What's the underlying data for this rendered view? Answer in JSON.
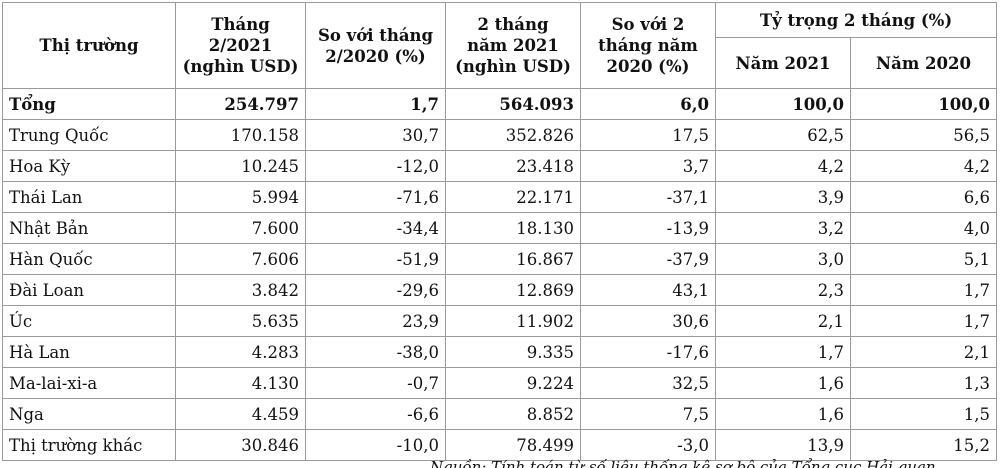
{
  "table": {
    "header": {
      "market": "Thị trường",
      "month_value": "Tháng\n2/2021\n(nghìn USD)",
      "month_change": "So với tháng\n2/2020 (%)",
      "two_month_value": "2 tháng\nnăm 2021\n(nghìn USD)",
      "two_month_change": "So với 2\ntháng năm\n2020 (%)",
      "share_group": "Tỷ trọng 2 tháng  (%)",
      "share_2021": "Năm 2021",
      "share_2020": "Năm 2020"
    },
    "rows": [
      [
        "Tổng",
        "254.797",
        "1,7",
        "564.093",
        "6,0",
        "100,0",
        "100,0"
      ],
      [
        "Trung Quốc",
        "170.158",
        "30,7",
        "352.826",
        "17,5",
        "62,5",
        "56,5"
      ],
      [
        "Hoa Kỳ",
        "10.245",
        "-12,0",
        "23.418",
        "3,7",
        "4,2",
        "4,2"
      ],
      [
        "Thái Lan",
        "5.994",
        "-71,6",
        "22.171",
        "-37,1",
        "3,9",
        "6,6"
      ],
      [
        "Nhật Bản",
        "7.600",
        "-34,4",
        "18.130",
        "-13,9",
        "3,2",
        "4,0"
      ],
      [
        "Hàn Quốc",
        "7.606",
        "-51,9",
        "16.867",
        "-37,9",
        "3,0",
        "5,1"
      ],
      [
        "Đài Loan",
        "3.842",
        "-29,6",
        "12.869",
        "43,1",
        "2,3",
        "1,7"
      ],
      [
        "Úc",
        "5.635",
        "23,9",
        "11.902",
        "30,6",
        "2,1",
        "1,7"
      ],
      [
        "Hà Lan",
        "4.283",
        "-38,0",
        "9.335",
        "-17,6",
        "1,7",
        "2,1"
      ],
      [
        "Ma-lai-xi-a",
        "4.130",
        "-0,7",
        "9.224",
        "32,5",
        "1,6",
        "1,3"
      ],
      [
        "Nga",
        "4.459",
        "-6,6",
        "8.852",
        "7,5",
        "1,6",
        "1,5"
      ],
      [
        "Thị trường khác",
        "30.846",
        "-10,0",
        "78.499",
        "-3,0",
        "13,9",
        "15,2"
      ]
    ],
    "source": "Nguồn: Tính toán từ số liệu thống kê sơ bộ của Tổng cục Hải quan"
  }
}
